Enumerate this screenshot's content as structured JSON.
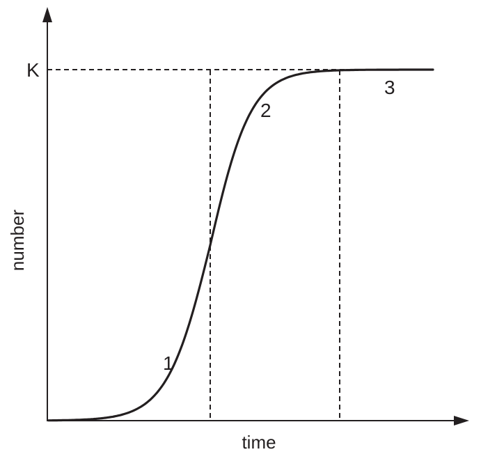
{
  "diagram": {
    "x_axis_label": "time",
    "y_axis_label": "number",
    "carrying_capacity_label": "K",
    "phase_labels": [
      "1",
      "2",
      "3"
    ]
  },
  "colors": {
    "ink": "#231f20",
    "background": "#ffffff"
  },
  "chart_data": {
    "type": "line",
    "xlabel": "time",
    "ylabel": "number",
    "y_tick_labels": [
      "K"
    ],
    "curve_shape": "logistic (S-shaped) growth approaching K",
    "phase_labels": [
      "1",
      "2",
      "3"
    ],
    "reference_lines": [
      "horizontal dashed line at K",
      "vertical dashed line at inflection point",
      "vertical dashed line where curve nears K"
    ]
  }
}
